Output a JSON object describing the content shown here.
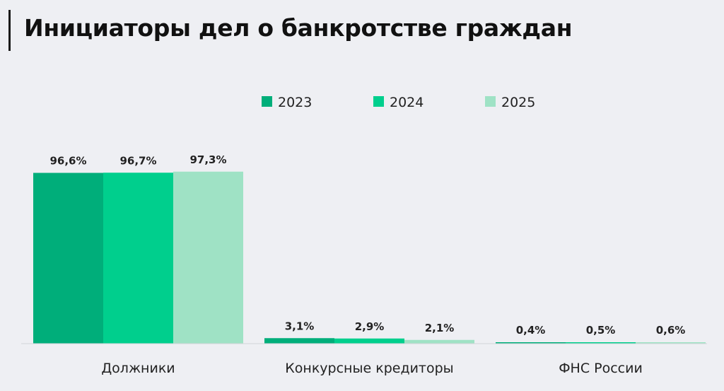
{
  "title": "Инициаторы дел о банкротстве граждан",
  "chart_data": {
    "type": "bar",
    "categories": [
      "Должники",
      "Конкурсные кредиторы",
      "ФНС России"
    ],
    "series": [
      {
        "name": "2023",
        "color": "#00ae7a",
        "values": [
          96.6,
          3.1,
          0.4
        ],
        "labels": [
          "96,6%",
          "3,1%",
          "0,4%"
        ]
      },
      {
        "name": "2024",
        "color": "#00cf8d",
        "values": [
          96.7,
          2.9,
          0.5
        ],
        "labels": [
          "96,7%",
          "2,9%",
          "0,5%"
        ]
      },
      {
        "name": "2025",
        "color": "#9fe2c5",
        "values": [
          97.3,
          2.1,
          0.6
        ],
        "labels": [
          "97,3%",
          "2,1%",
          "0,6%"
        ]
      }
    ],
    "ylim": [
      0,
      100
    ],
    "legend": "top",
    "grid": false
  }
}
